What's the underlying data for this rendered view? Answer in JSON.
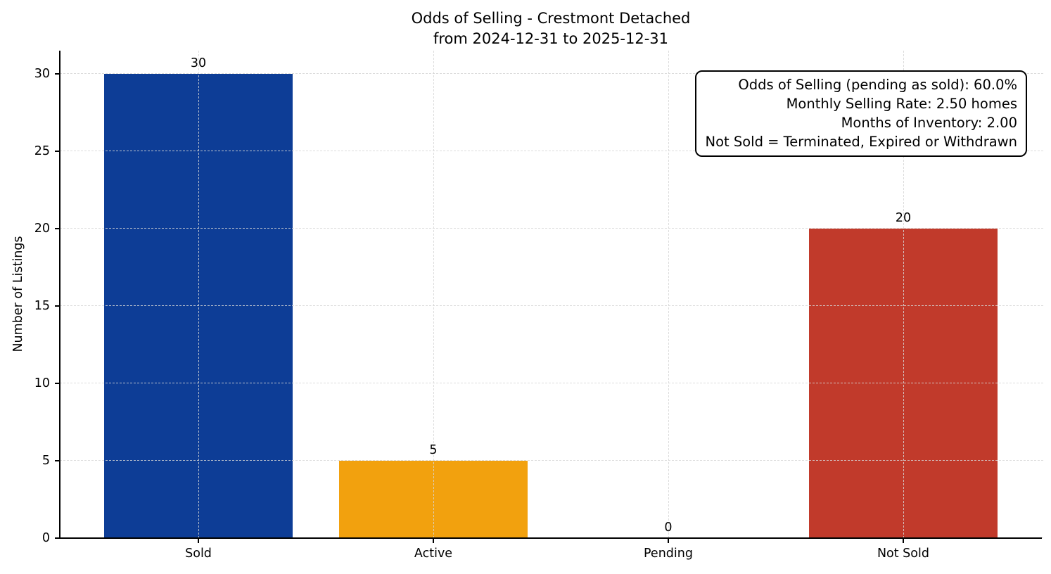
{
  "chart_data": {
    "type": "bar",
    "title": "Odds of Selling - Crestmont Detached",
    "subtitle": "from 2024-12-31 to 2025-12-31",
    "categories": [
      "Sold",
      "Active",
      "Pending",
      "Not Sold"
    ],
    "values": [
      30,
      5,
      0,
      20
    ],
    "bar_value_labels": [
      "30",
      "5",
      "0",
      "20"
    ],
    "bar_colors": [
      "#0d3d96",
      "#f2a10e",
      null,
      "#c13a2b"
    ],
    "xlabel": "",
    "ylabel": "Number of Listings",
    "yticks": [
      0,
      5,
      10,
      15,
      20,
      25,
      30
    ],
    "ylim": [
      0,
      31.5
    ],
    "xlim": [
      -0.59,
      3.59
    ],
    "bar_width": 0.8,
    "grid": {
      "horizontal": true,
      "vertical": true,
      "style": "dashed",
      "color": "#d6d6d6",
      "drawn_above_bars": true
    },
    "axis_color": "#000000",
    "text_color": "#000000",
    "annotation_box": {
      "align": "right",
      "position": "top-right",
      "lines": [
        "Odds of Selling (pending as sold): 60.0%",
        "Monthly Selling Rate: 2.50 homes",
        "Months of Inventory: 2.00",
        "Not Sold = Terminated, Expired or Withdrawn"
      ]
    }
  }
}
